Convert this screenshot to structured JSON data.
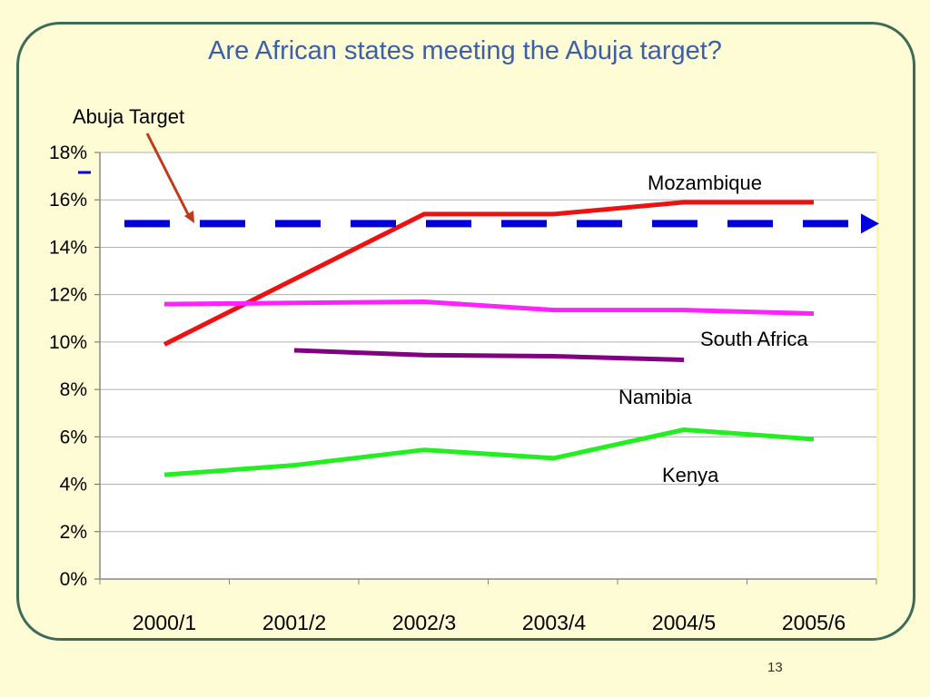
{
  "slide": {
    "title": "Are African states meeting the Abuja target?",
    "page_number": "13"
  },
  "colors": {
    "background": "#fefcd4",
    "frame": "#3d6b58",
    "title": "#3b5fa8",
    "target": "#0000dd",
    "arrow": "#c0391b"
  },
  "chart_data": {
    "type": "line",
    "categories": [
      "2000/1",
      "2001/2",
      "2002/3",
      "2003/4",
      "2004/5",
      "2005/6"
    ],
    "ylim": [
      0,
      18
    ],
    "yticks": [
      "0%",
      "2%",
      "4%",
      "6%",
      "8%",
      "10%",
      "12%",
      "14%",
      "16%",
      "18%"
    ],
    "grid": true,
    "series": [
      {
        "name": "Mozambique",
        "color": "#ee1111",
        "values": [
          9.9,
          null,
          15.4,
          15.4,
          15.9,
          15.9
        ]
      },
      {
        "name": "South Africa",
        "color": "#ff22ff",
        "values": [
          11.6,
          11.65,
          11.7,
          11.35,
          11.35,
          11.2
        ]
      },
      {
        "name": "Namibia",
        "color": "#800080",
        "values": [
          null,
          9.65,
          9.45,
          9.4,
          9.25,
          null
        ]
      },
      {
        "name": "Kenya",
        "color": "#22ee22",
        "values": [
          4.4,
          4.8,
          5.45,
          5.1,
          6.3,
          5.9
        ]
      }
    ],
    "target": {
      "label": "Abuja Target",
      "value": 15
    }
  }
}
